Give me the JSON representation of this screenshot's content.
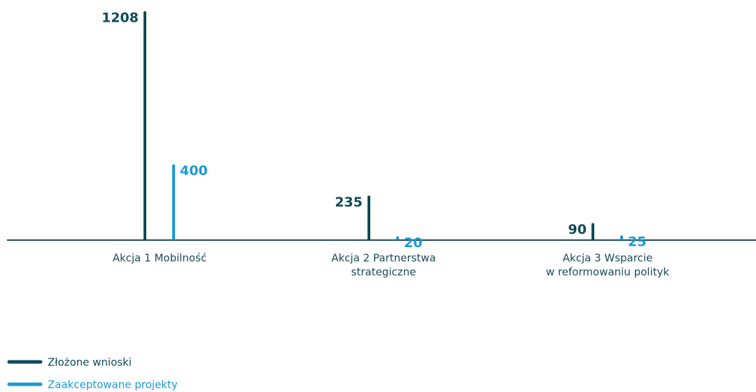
{
  "chart_data": {
    "type": "bar",
    "categories": [
      [
        "Akcja 1 Mobilność"
      ],
      [
        "Akcja 2 Partnerstwa",
        "strategiczne"
      ],
      [
        "Akcja 3 Wsparcie",
        "w reformowaniu polityk"
      ]
    ],
    "series": [
      {
        "name": "Złożone wnioski",
        "color": "#0f4a5a",
        "values": [
          1208,
          235,
          90
        ]
      },
      {
        "name": "Zaakceptowane projekty",
        "color": "#1a9ad6",
        "values": [
          400,
          20,
          25
        ]
      }
    ],
    "ylim": [
      0,
      1208
    ]
  }
}
